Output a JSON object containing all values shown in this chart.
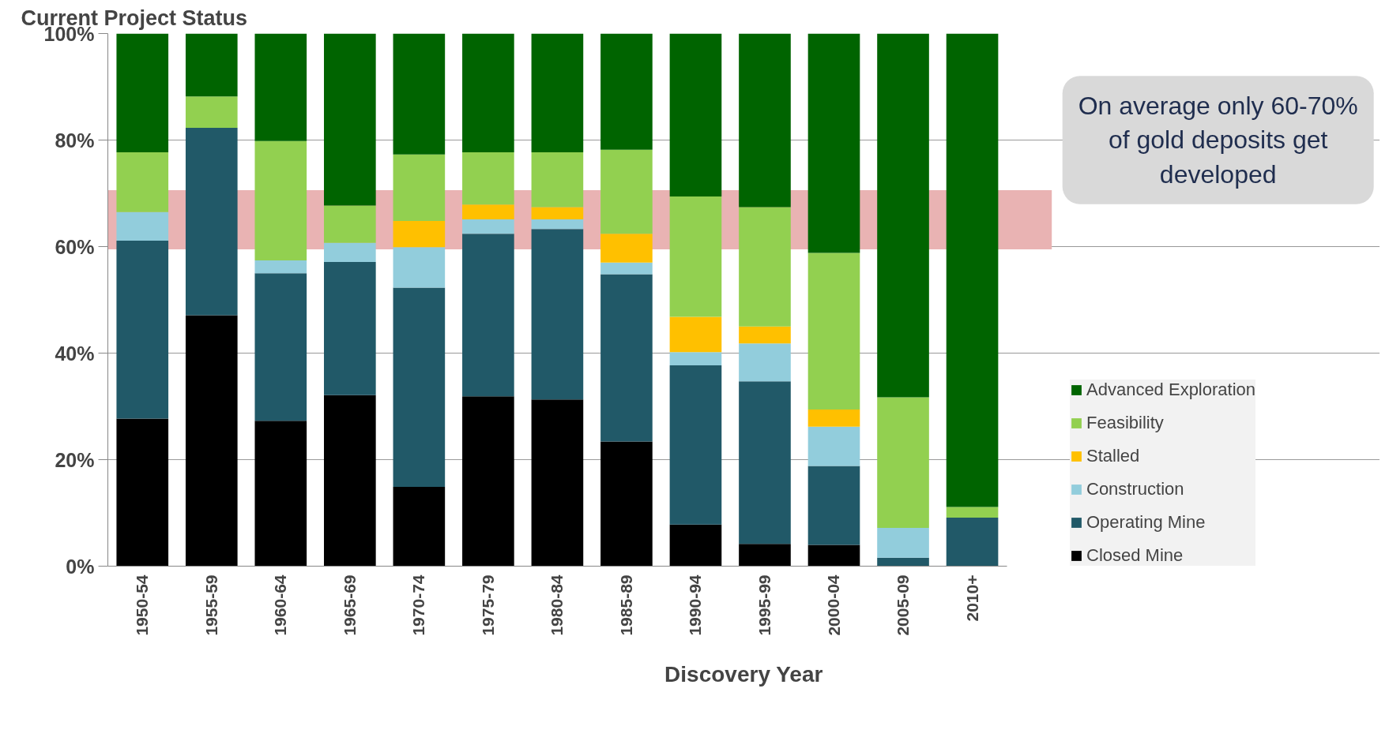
{
  "chart_data": {
    "type": "bar",
    "stacked": true,
    "title": "Current Project Status",
    "xlabel": "Discovery Year",
    "categories": [
      "1950-54",
      "1955-59",
      "1960-64",
      "1965-69",
      "1970-74",
      "1975-79",
      "1980-84",
      "1985-89",
      "1990-94",
      "1995-99",
      "2000-04",
      "2005-09",
      "2010+"
    ],
    "series": [
      {
        "name": "Closed Mine",
        "color": "#000000",
        "values": [
          27.7,
          47.1,
          27.3,
          32.1,
          14.9,
          31.9,
          31.3,
          23.4,
          7.8,
          4.2,
          4.0,
          0,
          0
        ]
      },
      {
        "name": "Operating Mine",
        "color": "#215968",
        "values": [
          33.4,
          35.2,
          27.7,
          25.0,
          37.4,
          30.5,
          32.0,
          31.4,
          29.9,
          30.5,
          14.8,
          1.6,
          9.1
        ]
      },
      {
        "name": "Construction",
        "color": "#92cddc",
        "values": [
          5.4,
          0,
          2.4,
          3.6,
          7.6,
          2.7,
          1.8,
          2.2,
          2.5,
          7.1,
          7.4,
          5.6,
          0
        ]
      },
      {
        "name": "Stalled",
        "color": "#ffc000",
        "values": [
          0,
          0,
          0,
          0,
          4.9,
          2.8,
          2.3,
          5.4,
          6.6,
          3.2,
          3.2,
          0,
          0
        ]
      },
      {
        "name": "Feasibility",
        "color": "#92d050",
        "values": [
          11.2,
          5.9,
          22.4,
          7.0,
          12.5,
          9.8,
          10.3,
          15.8,
          22.6,
          22.4,
          29.4,
          24.5,
          2.0
        ]
      },
      {
        "name": "Advanced Exploration",
        "color": "#006400",
        "values": [
          22.3,
          11.8,
          20.2,
          32.3,
          22.7,
          22.3,
          22.3,
          21.8,
          30.6,
          32.6,
          41.2,
          68.3,
          88.9
        ]
      }
    ],
    "ylim": [
      0,
      100
    ],
    "yticks": [
      {
        "value": 0,
        "label": "0%"
      },
      {
        "value": 20,
        "label": "20%"
      },
      {
        "value": 40,
        "label": "40%"
      },
      {
        "value": 60,
        "label": "60%"
      },
      {
        "value": 80,
        "label": "80%"
      },
      {
        "value": 100,
        "label": "100%"
      }
    ],
    "grid": "y",
    "legend": "right",
    "bands": [
      {
        "axis": "y",
        "from": 59.5,
        "to": 70.6,
        "color": "#e9b3b3"
      }
    ],
    "annotations": [
      "On average only 60-70% of gold deposits get developed"
    ]
  }
}
